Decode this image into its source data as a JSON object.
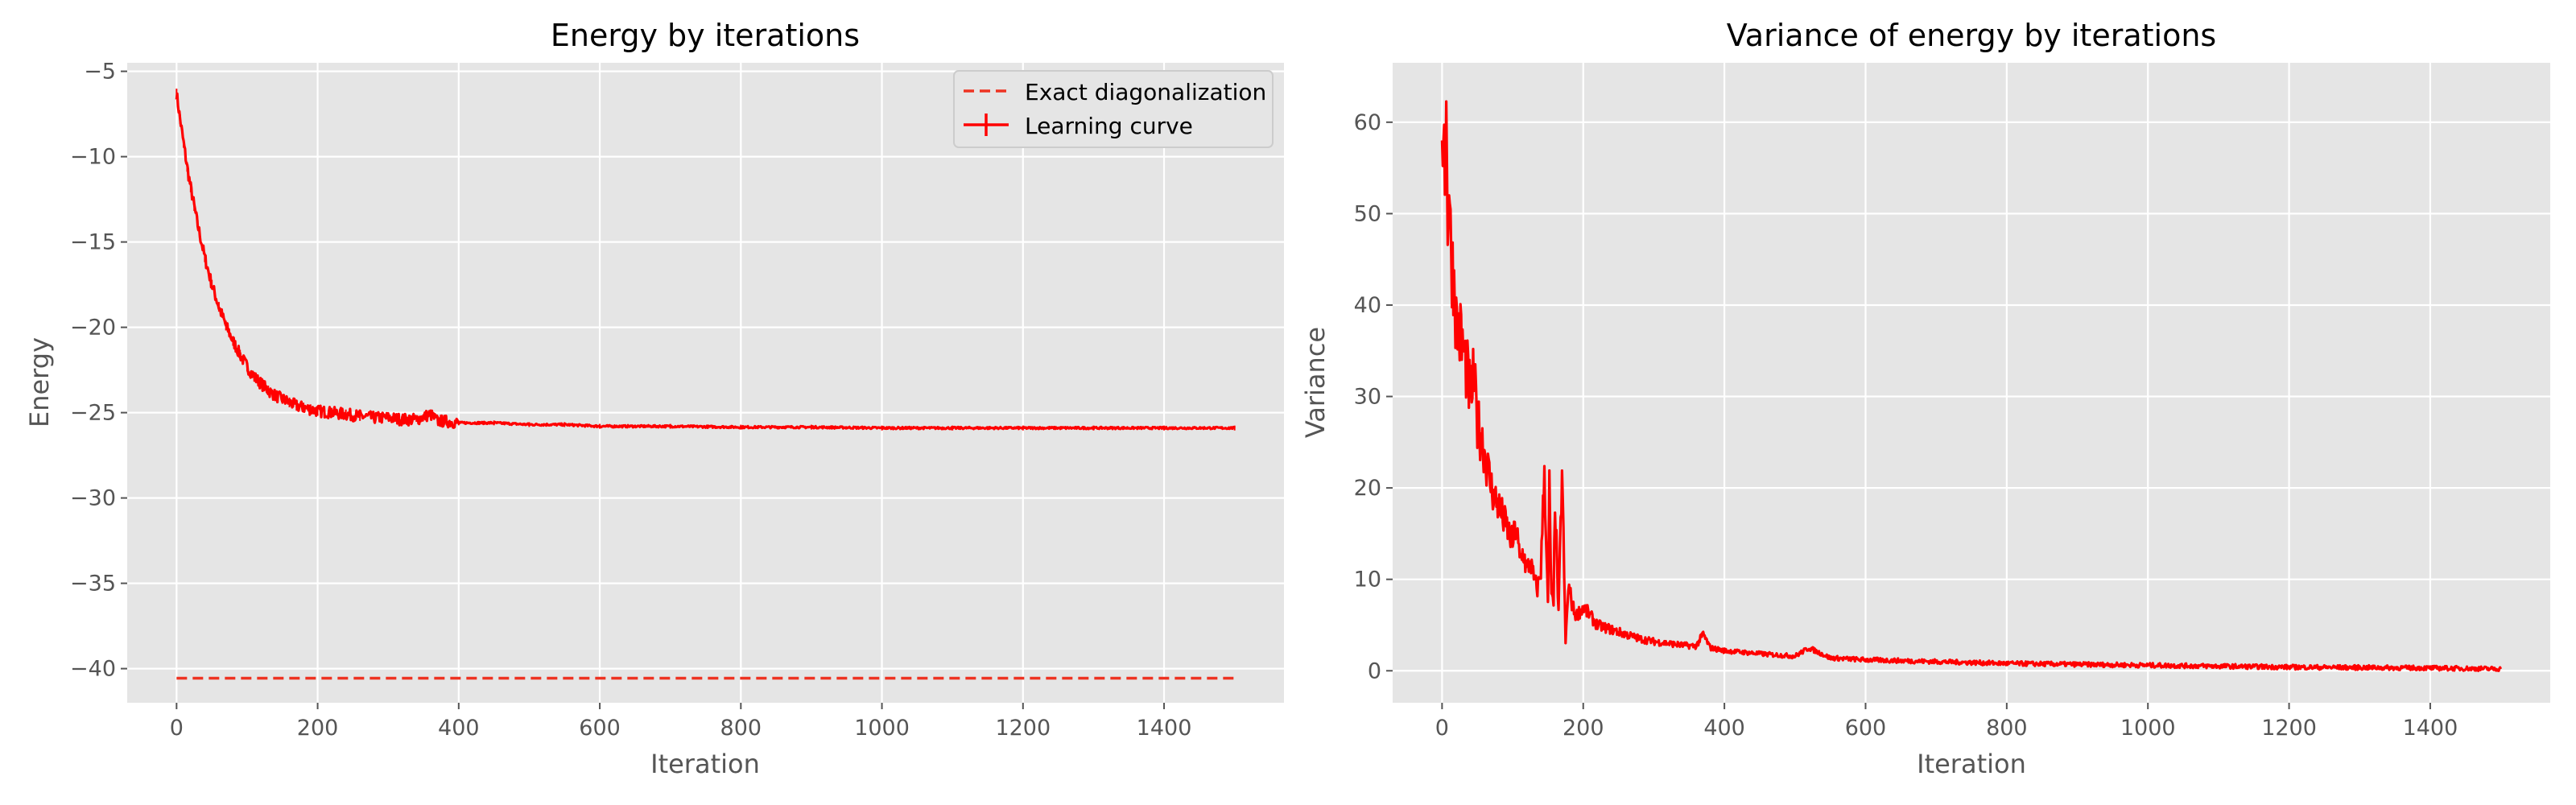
{
  "chart_data": [
    {
      "type": "line",
      "title": "Energy by iterations",
      "xlabel": "Iteration",
      "ylabel": "Energy",
      "xlim": [
        -70,
        1570
      ],
      "ylim": [
        -42.0,
        -4.5
      ],
      "xticks": [
        0,
        200,
        400,
        600,
        800,
        1000,
        1200,
        1400
      ],
      "xtick_labels": [
        "0",
        "200",
        "400",
        "600",
        "800",
        "1000",
        "1200",
        "1400"
      ],
      "yticks": [
        -5,
        -10,
        -15,
        -20,
        -25,
        -30,
        -35,
        -40
      ],
      "ytick_labels": [
        "−5",
        "−10",
        "−15",
        "−20",
        "−25",
        "−30",
        "−35",
        "−40"
      ],
      "grid": true,
      "legend_position": "top-right",
      "colors": {
        "background": "#e5e5e5",
        "grid": "#ffffff",
        "series": "#ff0000",
        "dashed": "#ee3322"
      },
      "series": [
        {
          "name": "Exact diagonalization",
          "style": "dashed",
          "x": [
            0,
            1500
          ],
          "y": [
            -40.56,
            -40.56
          ]
        },
        {
          "name": "Learning curve",
          "style": "line-with-errorbars",
          "x": [
            0,
            5,
            10,
            15,
            20,
            25,
            30,
            40,
            50,
            60,
            70,
            80,
            90,
            100,
            110,
            120,
            130,
            140,
            150,
            160,
            170,
            180,
            190,
            200,
            220,
            240,
            260,
            280,
            300,
            320,
            340,
            360,
            370,
            380,
            400,
            450,
            500,
            550,
            600,
            700,
            800,
            900,
            1000,
            1100,
            1200,
            1300,
            1400,
            1500
          ],
          "y": [
            -6.3,
            -7.8,
            -9.2,
            -10.6,
            -11.8,
            -12.9,
            -14.0,
            -15.9,
            -17.5,
            -18.8,
            -19.9,
            -20.8,
            -21.6,
            -22.3,
            -22.9,
            -23.3,
            -23.7,
            -24.0,
            -24.2,
            -24.4,
            -24.6,
            -24.7,
            -24.8,
            -24.9,
            -25.0,
            -25.1,
            -25.2,
            -25.3,
            -25.3,
            -25.4,
            -25.4,
            -25.1,
            -25.5,
            -25.5,
            -25.6,
            -25.6,
            -25.7,
            -25.7,
            -25.8,
            -25.8,
            -25.85,
            -25.85,
            -25.9,
            -25.9,
            -25.9,
            -25.9,
            -25.9,
            -25.9
          ]
        }
      ]
    },
    {
      "type": "line",
      "title": "Variance of energy by iterations",
      "xlabel": "Iteration",
      "ylabel": "Variance",
      "xlim": [
        -70,
        1570
      ],
      "ylim": [
        -3.5,
        66.5
      ],
      "xticks": [
        0,
        200,
        400,
        600,
        800,
        1000,
        1200,
        1400
      ],
      "xtick_labels": [
        "0",
        "200",
        "400",
        "600",
        "800",
        "1000",
        "1200",
        "1400"
      ],
      "yticks": [
        0,
        10,
        20,
        30,
        40,
        50,
        60
      ],
      "ytick_labels": [
        "0",
        "10",
        "20",
        "30",
        "40",
        "50",
        "60"
      ],
      "grid": true,
      "colors": {
        "background": "#e5e5e5",
        "grid": "#ffffff",
        "series": "#ff0000"
      },
      "series": [
        {
          "x": [
            0,
            2,
            4,
            6,
            8,
            10,
            12,
            15,
            18,
            20,
            25,
            30,
            35,
            40,
            45,
            50,
            55,
            60,
            65,
            70,
            75,
            80,
            85,
            90,
            95,
            100,
            105,
            110,
            115,
            120,
            125,
            130,
            135,
            140,
            145,
            150,
            152,
            155,
            158,
            160,
            165,
            170,
            175,
            178,
            180,
            185,
            190,
            200,
            210,
            220,
            240,
            260,
            280,
            300,
            320,
            340,
            360,
            370,
            380,
            400,
            430,
            460,
            500,
            520,
            550,
            600,
            650,
            700,
            800,
            900,
            1000,
            1100,
            1200,
            1300,
            1400,
            1450,
            1500
          ],
          "y": [
            52,
            63,
            57,
            60,
            50,
            54,
            47,
            44,
            42,
            38,
            37,
            35,
            33,
            30,
            32,
            27,
            26,
            24,
            22,
            20,
            19,
            18,
            17,
            16,
            15,
            14,
            16,
            12,
            13,
            11,
            12,
            10,
            9,
            11,
            22,
            7,
            20,
            8,
            7,
            19,
            6,
            22,
            3,
            8,
            9,
            7,
            6,
            7,
            6,
            5,
            4.5,
            4,
            3.5,
            3.2,
            3,
            2.8,
            2.7,
            4,
            2.5,
            2.2,
            2.0,
            1.8,
            1.6,
            2.5,
            1.4,
            1.2,
            1.1,
            1.0,
            0.8,
            0.7,
            0.6,
            0.5,
            0.4,
            0.35,
            0.3,
            0.25,
            0.2
          ]
        }
      ]
    }
  ]
}
